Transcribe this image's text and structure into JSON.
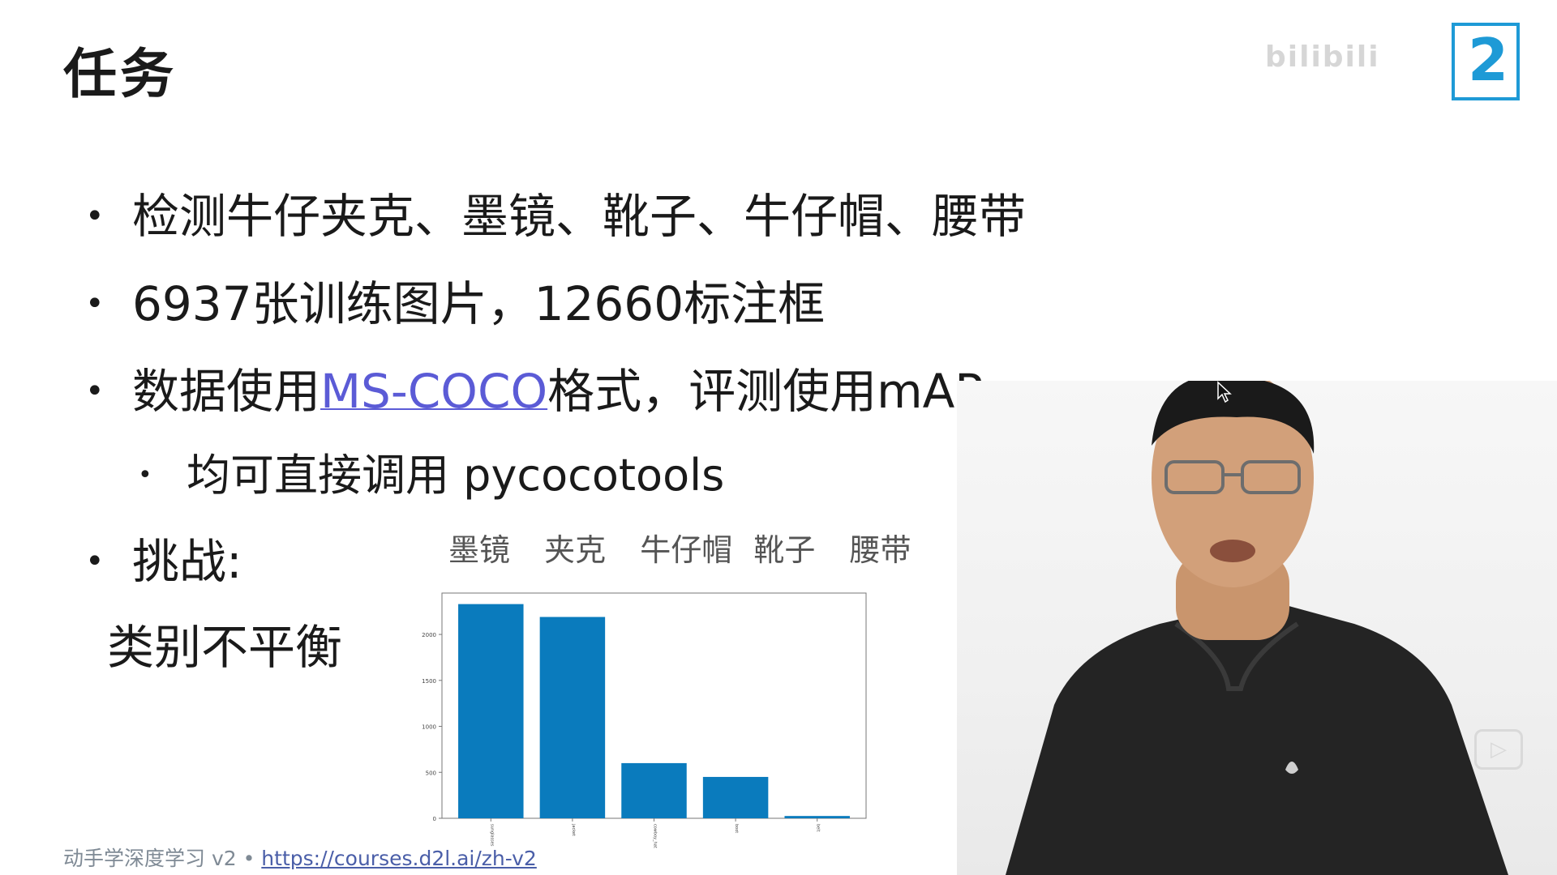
{
  "slide": {
    "title": "任务",
    "bullets": [
      {
        "text": "检测牛仔夹克、墨镜、靴子、牛仔帽、腰带"
      },
      {
        "text": "6937张训练图片，12660标注框"
      },
      {
        "before": "数据使用",
        "link": "MS-COCO",
        "after": "格式，评测使用mAP"
      }
    ],
    "sub_bullet": "均可直接调用 pycocotools",
    "challenge_line1": "挑战:",
    "challenge_line2": "类别不平衡",
    "category_labels": [
      "墨镜",
      "夹克",
      "牛仔帽",
      "靴子",
      "腰带"
    ]
  },
  "chart_data": {
    "type": "bar",
    "categories": [
      "sunglasses",
      "jacket",
      "cowboy_hat",
      "boot",
      "belt"
    ],
    "values": [
      2330,
      2190,
      600,
      450,
      25
    ],
    "ylim": [
      0,
      2450
    ],
    "yticks": [
      0,
      500,
      1000,
      1500,
      2000
    ],
    "color": "#0a7bbd",
    "grid": false
  },
  "footer": {
    "course": "动手学深度学习 v2 • ",
    "url": "https://courses.d2l.ai/zh-v2"
  },
  "overlay": {
    "logo_number": "2",
    "watermark": "bilibili",
    "play_icon": "play-icon",
    "cursor_icon": "pointer-cursor-icon"
  }
}
